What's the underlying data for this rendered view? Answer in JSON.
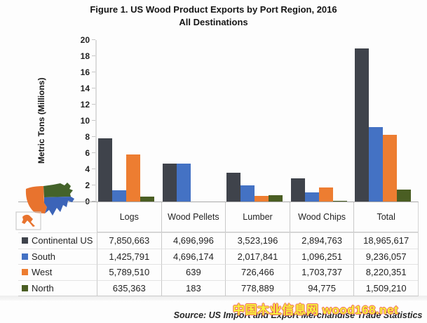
{
  "title": {
    "line1": "Figure 1. US Wood Product Exports by Port Region, 2016",
    "line2": "All Destinations"
  },
  "y_axis": {
    "label": "Metric Tons (Millions)",
    "ticks": [
      0,
      2,
      4,
      6,
      8,
      10,
      12,
      14,
      16,
      18,
      20
    ],
    "max": 20
  },
  "source": "Source: US Import and Export Merchandise Trade Statistics",
  "watermark": "中国木业信息网 wood168.net",
  "map": {
    "west_color": "#e8732e",
    "north_color": "#44632a",
    "south_color": "#3c64b8",
    "alaska_color": "#e8732e"
  },
  "chart_data": {
    "type": "bar",
    "title": "Figure 1. US Wood Product Exports by Port Region, 2016 — All Destinations",
    "xlabel": "",
    "ylabel": "Metric Tons (Millions)",
    "ylim": [
      0,
      20
    ],
    "yticks": [
      0,
      2,
      4,
      6,
      8,
      10,
      12,
      14,
      16,
      18,
      20
    ],
    "grid": false,
    "legend_position": "table-first-column",
    "categories": [
      "Logs",
      "Wood Pellets",
      "Lumber",
      "Wood Chips",
      "Total"
    ],
    "series": [
      {
        "name": "Continental US",
        "color": "#3f434b",
        "values_metric_tons": [
          7850663,
          4696996,
          3523196,
          2894763,
          18965617
        ],
        "labels": [
          "7,850,663",
          "4,696,996",
          "3,523,196",
          "2,894,763",
          "18,965,617"
        ]
      },
      {
        "name": "South",
        "color": "#4472c4",
        "values_metric_tons": [
          1425791,
          4696174,
          2017841,
          1096251,
          9236057
        ],
        "labels": [
          "1,425,791",
          "4,696,174",
          "2,017,841",
          "1,096,251",
          "9,236,057"
        ]
      },
      {
        "name": "West",
        "color": "#ed7d31",
        "values_metric_tons": [
          5789510,
          639,
          726466,
          1703737,
          8220351
        ],
        "labels": [
          "5,789,510",
          "639",
          "726,466",
          "1,703,737",
          "8,220,351"
        ]
      },
      {
        "name": "North",
        "color": "#4a5e23",
        "values_metric_tons": [
          635363,
          183,
          778889,
          94775,
          1509210
        ],
        "labels": [
          "635,363",
          "183",
          "778,889",
          "94,775",
          "1,509,210"
        ]
      }
    ]
  }
}
